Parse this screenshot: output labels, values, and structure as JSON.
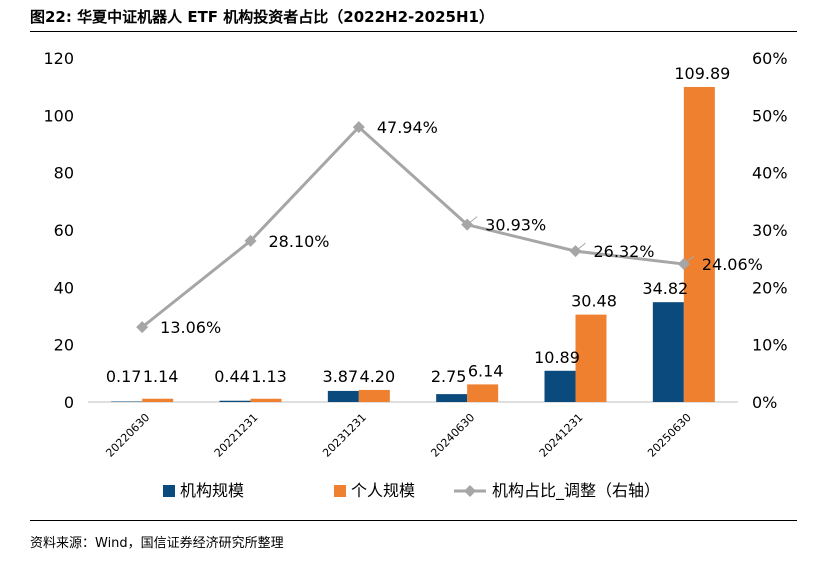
{
  "title": "图22: 华夏中证机器人 ETF 机构投资者占比（2022H2-2025H1）",
  "source": "资料来源：Wind，国信证券经济研究所整理",
  "colors": {
    "institutional": "#0b4a7c",
    "individual": "#ef8030",
    "ratio": "#a6a6a6"
  },
  "chart_data": {
    "type": "bar",
    "categories": [
      "20220630",
      "20221231",
      "20231231",
      "20240630",
      "20241231",
      "20250630"
    ],
    "series": [
      {
        "name": "机构规模",
        "type": "bar",
        "axis": "left",
        "values": [
          0.17,
          0.44,
          3.87,
          2.75,
          10.89,
          34.82
        ],
        "labels": [
          "0.17",
          "0.44",
          "3.87",
          "2.75",
          "10.89",
          "34.82"
        ]
      },
      {
        "name": "个人规模",
        "type": "bar",
        "axis": "left",
        "values": [
          1.14,
          1.13,
          4.2,
          6.14,
          30.48,
          109.89
        ],
        "labels": [
          "1.14",
          "1.13",
          "4.20",
          "6.14",
          "30.48",
          "109.89"
        ]
      },
      {
        "name": "机构占比_调整（右轴）",
        "type": "line",
        "axis": "right",
        "values": [
          13.06,
          28.1,
          47.94,
          30.93,
          26.32,
          24.06
        ],
        "labels": [
          "13.06%",
          "28.10%",
          "47.94%",
          "30.93%",
          "26.32%",
          "24.06%"
        ]
      }
    ],
    "left_axis": {
      "min": 0,
      "max": 120,
      "ticks": [
        "0",
        "20",
        "40",
        "60",
        "80",
        "100",
        "120"
      ]
    },
    "right_axis": {
      "min": 0,
      "max": 60,
      "ticks": [
        "0%",
        "10%",
        "20%",
        "30%",
        "40%",
        "50%",
        "60%"
      ]
    },
    "legend_position": "bottom"
  }
}
